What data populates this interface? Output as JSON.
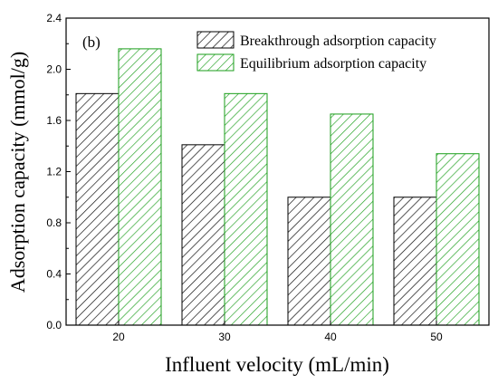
{
  "chart_data": {
    "type": "bar",
    "panel_label": "(b)",
    "categories": [
      "20",
      "30",
      "40",
      "50"
    ],
    "series": [
      {
        "name": "Breakthrough adsorption capacity",
        "values": [
          1.81,
          1.41,
          1.0,
          1.0
        ],
        "color": "#000000",
        "pattern": "diagonal-hatch"
      },
      {
        "name": "Equilibrium adsorption capacity",
        "values": [
          2.16,
          1.81,
          1.65,
          1.34
        ],
        "color": "#1a9e1a",
        "pattern": "diagonal-hatch"
      }
    ],
    "xlabel": "Influent velocity (mL/min)",
    "ylabel": "Adsorption capacity (mmol/g)",
    "ylim": [
      0.0,
      2.4
    ],
    "yticks": [
      "0.0",
      "0.4",
      "0.8",
      "1.2",
      "1.6",
      "2.0",
      "2.4"
    ],
    "grid": false,
    "legend_position": "top-right"
  }
}
